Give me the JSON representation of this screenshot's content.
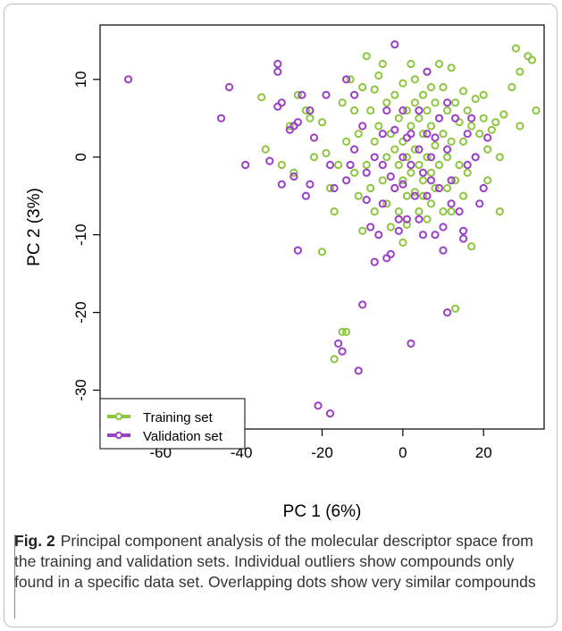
{
  "chart_data": {
    "type": "scatter",
    "xlabel": "PC 1 (6%)",
    "ylabel": "PC 2 (3%)",
    "xlim": [
      -75,
      35
    ],
    "ylim": [
      -35,
      17
    ],
    "xticks": [
      -60,
      -40,
      -20,
      0,
      20
    ],
    "yticks": [
      -30,
      -20,
      -10,
      0,
      10
    ],
    "legend_position": "bottom-left",
    "series": [
      {
        "name": "Training set",
        "color": "#8dc63f",
        "points": [
          [
            -35,
            7.7
          ],
          [
            -34,
            1
          ],
          [
            -30,
            -1
          ],
          [
            -28,
            4
          ],
          [
            -27,
            -2
          ],
          [
            -26,
            8
          ],
          [
            -24,
            6
          ],
          [
            -23,
            5
          ],
          [
            -22,
            0
          ],
          [
            -20,
            4.5
          ],
          [
            -20,
            -12.2
          ],
          [
            -19,
            0.5
          ],
          [
            -18,
            -4
          ],
          [
            -17,
            -7
          ],
          [
            -17,
            -26
          ],
          [
            -15,
            -22.5
          ],
          [
            -14,
            -22.5
          ],
          [
            -16,
            -1
          ],
          [
            -15,
            7
          ],
          [
            -14,
            2
          ],
          [
            -13,
            10
          ],
          [
            -12,
            6
          ],
          [
            -12,
            -2
          ],
          [
            -11,
            3
          ],
          [
            -11,
            -5
          ],
          [
            -10,
            9
          ],
          [
            -10,
            -9.5
          ],
          [
            -9,
            13
          ],
          [
            -9,
            -1
          ],
          [
            -8,
            6
          ],
          [
            -8,
            -4
          ],
          [
            -7,
            8.7
          ],
          [
            -7,
            2
          ],
          [
            -7,
            -7
          ],
          [
            -6,
            10.5
          ],
          [
            -6,
            4
          ],
          [
            -5,
            -3
          ],
          [
            -5,
            12
          ],
          [
            -4,
            7
          ],
          [
            -4,
            0
          ],
          [
            -4,
            -6
          ],
          [
            -3,
            3
          ],
          [
            -3,
            -9
          ],
          [
            -2,
            8
          ],
          [
            -2,
            1
          ],
          [
            -2,
            -4
          ],
          [
            -1,
            5
          ],
          [
            -1,
            -1
          ],
          [
            -1,
            -7
          ],
          [
            0,
            9.5
          ],
          [
            0,
            2
          ],
          [
            0,
            -3
          ],
          [
            0,
            -11
          ],
          [
            1,
            6
          ],
          [
            1,
            0
          ],
          [
            1,
            -5
          ],
          [
            1,
            -8.7
          ],
          [
            2,
            12
          ],
          [
            2,
            4
          ],
          [
            2,
            -2
          ],
          [
            3,
            10
          ],
          [
            3,
            7
          ],
          [
            3,
            1
          ],
          [
            3,
            -4.5
          ],
          [
            4,
            5
          ],
          [
            4,
            -1
          ],
          [
            4,
            -7
          ],
          [
            5,
            8
          ],
          [
            5,
            3
          ],
          [
            5,
            -3
          ],
          [
            5,
            -5
          ],
          [
            6,
            11
          ],
          [
            6,
            6
          ],
          [
            6,
            0
          ],
          [
            6,
            -8
          ],
          [
            7,
            9
          ],
          [
            7,
            4
          ],
          [
            7,
            -2
          ],
          [
            7,
            -6
          ],
          [
            8,
            7
          ],
          [
            8,
            1.5
          ],
          [
            8,
            -4
          ],
          [
            9,
            12
          ],
          [
            9,
            5
          ],
          [
            9,
            -1
          ],
          [
            10,
            9
          ],
          [
            10,
            3
          ],
          [
            10,
            -7
          ],
          [
            11,
            6
          ],
          [
            11,
            0
          ],
          [
            11,
            -4
          ],
          [
            12,
            11.5
          ],
          [
            12,
            2
          ],
          [
            12,
            -7
          ],
          [
            13,
            7
          ],
          [
            13,
            -3
          ],
          [
            13,
            -19.5
          ],
          [
            14,
            4.5
          ],
          [
            14,
            -1
          ],
          [
            15,
            8.5
          ],
          [
            15,
            2
          ],
          [
            15,
            -5
          ],
          [
            16,
            6
          ],
          [
            16,
            -2
          ],
          [
            17,
            4
          ],
          [
            17,
            -11.5
          ],
          [
            18,
            7.5
          ],
          [
            18,
            0
          ],
          [
            19,
            3
          ],
          [
            20,
            8
          ],
          [
            20,
            5
          ],
          [
            21,
            1
          ],
          [
            21,
            -3
          ],
          [
            22,
            3.5
          ],
          [
            23,
            4.5
          ],
          [
            24,
            0
          ],
          [
            25,
            5.5
          ],
          [
            27,
            9
          ],
          [
            28,
            14
          ],
          [
            29,
            11
          ],
          [
            29,
            4
          ],
          [
            31,
            13
          ],
          [
            32,
            12.5
          ],
          [
            33,
            6
          ],
          [
            24,
            -7
          ]
        ]
      },
      {
        "name": "Validation set",
        "color": "#9b3fc7",
        "points": [
          [
            -68,
            10
          ],
          [
            -45,
            5
          ],
          [
            -43,
            9
          ],
          [
            -39,
            -1
          ],
          [
            -33,
            -0.5
          ],
          [
            -31,
            12
          ],
          [
            -31,
            11
          ],
          [
            -31,
            6.5
          ],
          [
            -30,
            7
          ],
          [
            -30,
            -3.5
          ],
          [
            -28,
            3.5
          ],
          [
            -27,
            -2.5
          ],
          [
            -27,
            4
          ],
          [
            -26,
            -12
          ],
          [
            -26,
            4.5
          ],
          [
            -25,
            8
          ],
          [
            -24,
            -5
          ],
          [
            -23,
            6
          ],
          [
            -23,
            -3.5
          ],
          [
            -22,
            2.5
          ],
          [
            -21,
            -32
          ],
          [
            -19,
            8
          ],
          [
            -18,
            -33
          ],
          [
            -18,
            -1
          ],
          [
            -17,
            -4
          ],
          [
            -16,
            -24
          ],
          [
            -15,
            -25
          ],
          [
            -14,
            10
          ],
          [
            -14,
            -3
          ],
          [
            -13,
            -1
          ],
          [
            -12,
            1
          ],
          [
            -11,
            -27.5
          ],
          [
            -10,
            -19
          ],
          [
            -12,
            8
          ],
          [
            -10,
            4
          ],
          [
            -9,
            -2
          ],
          [
            -9,
            -5.5
          ],
          [
            -8,
            -9
          ],
          [
            -7,
            0
          ],
          [
            -7,
            -13.5
          ],
          [
            -6,
            -10
          ],
          [
            -5,
            3
          ],
          [
            -5,
            -1
          ],
          [
            -5,
            -6
          ],
          [
            -4,
            -13
          ],
          [
            -4,
            6
          ],
          [
            -3,
            -2.5
          ],
          [
            -3,
            -12.5
          ],
          [
            -2,
            14.5
          ],
          [
            -2,
            3.5
          ],
          [
            -2,
            -4
          ],
          [
            -1,
            -9.5
          ],
          [
            -1,
            -8
          ],
          [
            0,
            6
          ],
          [
            0,
            0
          ],
          [
            0,
            -3.5
          ],
          [
            1,
            2.5
          ],
          [
            1,
            -8
          ],
          [
            2,
            -24
          ],
          [
            2,
            3
          ],
          [
            2,
            -1
          ],
          [
            3,
            -5
          ],
          [
            4,
            6
          ],
          [
            4,
            1
          ],
          [
            4,
            -8
          ],
          [
            5,
            -2
          ],
          [
            5,
            -10
          ],
          [
            6,
            11
          ],
          [
            6,
            3
          ],
          [
            6,
            -5
          ],
          [
            7,
            -3
          ],
          [
            7,
            0
          ],
          [
            8,
            2.5
          ],
          [
            8,
            -10
          ],
          [
            9,
            5
          ],
          [
            9,
            -4
          ],
          [
            10,
            -9
          ],
          [
            10,
            -12
          ],
          [
            11,
            -20
          ],
          [
            11,
            1
          ],
          [
            12,
            -6
          ],
          [
            12,
            -3
          ],
          [
            13,
            5
          ],
          [
            14,
            -7
          ],
          [
            15,
            -9.5
          ],
          [
            15,
            -10.5
          ],
          [
            16,
            3
          ],
          [
            16,
            -1
          ],
          [
            17,
            5
          ],
          [
            18,
            0
          ],
          [
            19,
            -6
          ],
          [
            20,
            -4
          ],
          [
            21,
            2.5
          ],
          [
            11,
            7
          ]
        ]
      }
    ]
  },
  "caption": {
    "label": "Fig. 2",
    "text": "Principal component analysis of the molecular descriptor space from the training and validation sets. Individual outliers show compounds only found in a specific data set. Overlapping dots show very similar compounds"
  }
}
